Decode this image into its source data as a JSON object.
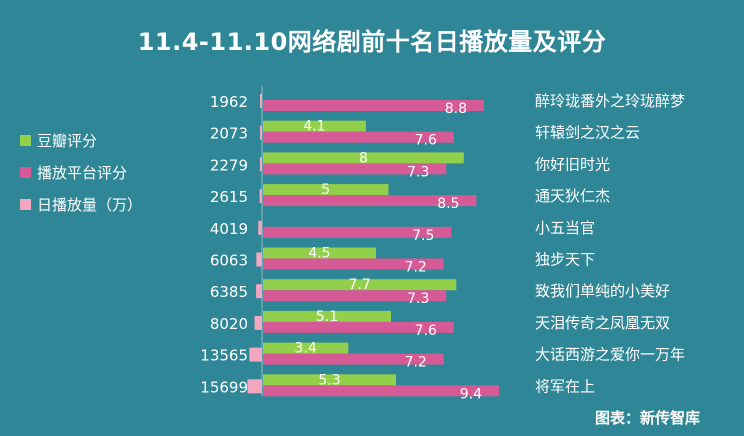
{
  "chart_data": {
    "type": "bar",
    "title": "11.4-11.10网络剧前十名日播放量及评分",
    "categories": [
      "醉玲珑番外之玲珑醉梦",
      "轩辕剑之汉之云",
      "你好旧时光",
      "通天狄仁杰",
      "小五当官",
      "独步天下",
      "致我们单纯的小美好",
      "天泪传奇之凤凰无双",
      "大话西游之爱你一万年",
      "将军在上"
    ],
    "series": [
      {
        "name": "豆瓣评分",
        "color": "#92cf4a",
        "values": [
          null,
          4.1,
          8,
          5,
          null,
          4.5,
          7.7,
          5.1,
          3.4,
          5.3
        ]
      },
      {
        "name": "播放平台评分",
        "color": "#d65a95",
        "values": [
          8.8,
          7.6,
          7.3,
          8.5,
          7.5,
          7.2,
          7.3,
          7.6,
          7.2,
          9.4
        ]
      },
      {
        "name": "日播放量（万）",
        "color": "#f3a6c0",
        "values": [
          1962,
          2073,
          2279,
          2615,
          4019,
          6063,
          6385,
          8020,
          13565,
          15699
        ]
      }
    ],
    "legend_position": "left",
    "grid": false
  },
  "source": "图表：新传智库"
}
